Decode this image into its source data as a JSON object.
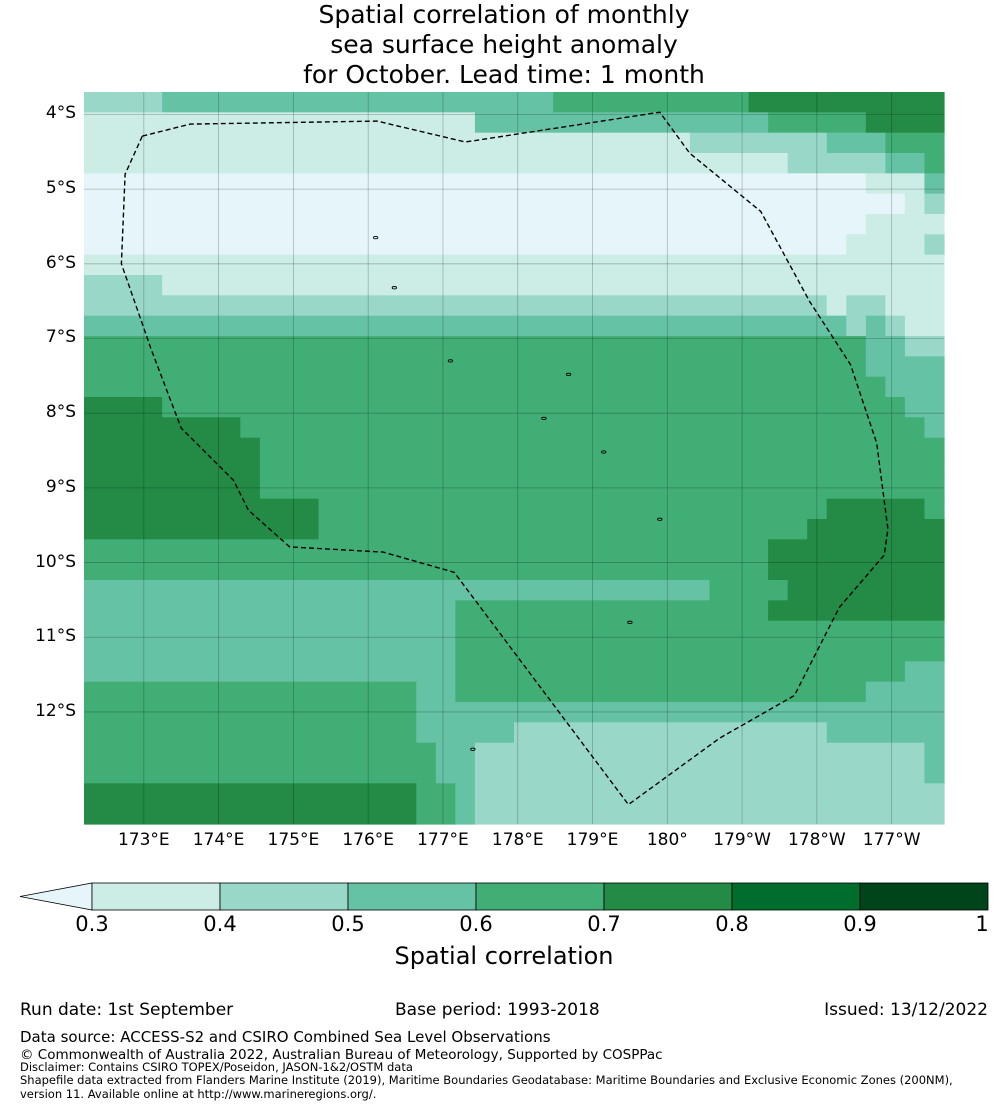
{
  "title": {
    "line1": "Spatial correlation of monthly",
    "line2": "sea surface height anomaly",
    "line3": "for October. Lead time: 1 month"
  },
  "map": {
    "lat_labels": [
      "4°S",
      "5°S",
      "6°S",
      "7°S",
      "8°S",
      "9°S",
      "10°S",
      "11°S",
      "12°S"
    ],
    "lon_labels": [
      "173°E",
      "174°E",
      "175°E",
      "176°E",
      "177°E",
      "178°E",
      "179°E",
      "180°",
      "179°W",
      "178°W",
      "177°W"
    ],
    "lat_range": [
      -13.5,
      -3.7
    ],
    "lon_range": [
      172.2,
      183.7
    ],
    "grid_spacing_deg": 0.25,
    "correlation_field": [
      "44445555555555555555555566666666667777777777",
      "33333333333333333333555555555555555666667777",
      "33333333333333333333333333333334444444555666",
      "33333333333333333333333333333333333344444556",
      "22222222222222222222222222222222222222223335",
      "22222222222222222222222222222222222222222234",
      "22222222222222222222222222222222222222223333",
      "22222222222222222222222222222222222222233334",
      "33333333333333333333333333333333333333333333",
      "44443333333333333333333333333333333333333333",
      "44444444444444444444444444444444444444344333",
      "55555555555555555555555555555555555555545433",
      "66666666666666666666666666666666666666665544",
      "66666666666666666666666666666666666666665555",
      "66666666666666666666666666666666666666666555",
      "77776666666666666666666666666666666666666655",
      "77777777666666666666666666666666666666666665",
      "77777777766666666666666666666666666666666666",
      "77777777766666666666666666666666666666666666",
      "77777777766666666666666666666666666666666666",
      "77777777777766666666666666666666666666777776",
      "77777777777766666666666666666666666667777777",
      "66666666666666666666666666666666666777777777",
      "66666666666666666666666666666666666777777777",
      "55555555555555555555555555555555666677777777",
      "55555555555555555556666666666666666777777777",
      "55555555555555555556666666666666666666666666",
      "55555555555555555556666666666666666666666666",
      "55555555555555555556666666666666666666666655",
      "66666666666666666556666666666666666666665555",
      "66666666666666666555555555555555555555555555",
      "66666666666666666555554444444444444444555555",
      "66666666666666666655444444444444444444444445",
      "66666666666666666655444444444444444444444445",
      "77777777777777777665444444444444444444444444",
      "77777777777777777665444444444444444444444444"
    ],
    "color_class_legend": {
      "2": "< 0.3",
      "3": "0.3–0.4",
      "4": "0.4–0.5",
      "5": "0.5–0.6",
      "6": "0.6–0.7",
      "7": "0.7–0.8"
    },
    "eez_boundary": [
      [
        172.98,
        -4.29
      ],
      [
        173.62,
        -4.13
      ],
      [
        176.12,
        -4.09
      ],
      [
        177.3,
        -4.37
      ],
      [
        179.9,
        -3.97
      ],
      [
        180.3,
        -4.52
      ],
      [
        181.25,
        -5.3
      ],
      [
        181.9,
        -6.5
      ],
      [
        182.45,
        -7.35
      ],
      [
        182.8,
        -8.4
      ],
      [
        182.95,
        -9.55
      ],
      [
        182.9,
        -9.9
      ],
      [
        182.3,
        -10.6
      ],
      [
        181.7,
        -11.78
      ],
      [
        180.7,
        -12.35
      ],
      [
        179.48,
        -13.24
      ],
      [
        177.15,
        -10.13
      ],
      [
        176.2,
        -9.86
      ],
      [
        174.95,
        -9.79
      ],
      [
        174.4,
        -9.3
      ],
      [
        174.2,
        -8.9
      ],
      [
        173.5,
        -8.2
      ],
      [
        173.1,
        -7.15
      ],
      [
        172.7,
        -6.0
      ],
      [
        172.75,
        -4.8
      ],
      [
        172.98,
        -4.29
      ]
    ]
  },
  "colorbar": {
    "label": "Spatial correlation",
    "ticks": [
      "0.3",
      "0.4",
      "0.5",
      "0.6",
      "0.7",
      "0.8",
      "0.9",
      "1"
    ],
    "colors": {
      "under": "#e5f5f9",
      "c2": "#e5f5f9",
      "c3": "#ccece6",
      "c4": "#99d8c9",
      "c5": "#66c2a4",
      "c6": "#41ae76",
      "c7": "#238b45",
      "c8": "#006d2c",
      "c9": "#00441b"
    }
  },
  "footer": {
    "run_date": "Run date: 1st September",
    "base_period": "Base period: 1993-2018",
    "issued": "Issued: 13/12/2022",
    "data_source": "Data source: ACCESS-S2 and CSIRO Combined Sea Level Observations",
    "copyright": "© Commonwealth of Australia 2022, Australian Bureau of Meteorology, Supported by COSPPac",
    "disclaimer": "Disclaimer: Contains CSIRO TOPEX/Poseidon, JASON-1&2/OSTM data",
    "shapefile1": "Shapefile data extracted from Flanders Marine Institute (2019), Maritime Boundaries Geodatabase: Maritime Boundaries and Exclusive Economic Zones (200NM),",
    "shapefile2": "version 11. Available online at http://www.marineregions.org/."
  }
}
